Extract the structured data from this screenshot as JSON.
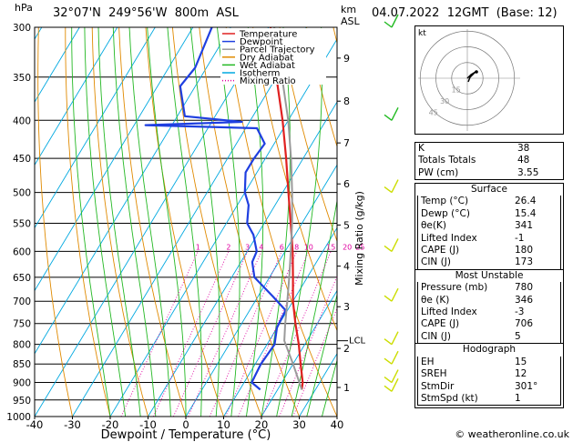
{
  "header": {
    "hpa_label": "hPa",
    "location": "32°07'N  249°56'W  800m  ASL",
    "km_label": "km",
    "asl_label": "ASL",
    "datetime": "04.07.2022  12GMT  (Base: 12)"
  },
  "footer": {
    "copyright": "© weatheronline.co.uk"
  },
  "chart_data": {
    "type": "line",
    "subtype": "skew-T log-P diagram",
    "xlabel": "Dewpoint / Temperature (°C)",
    "x_ticks": [
      -40,
      -30,
      -20,
      -10,
      0,
      10,
      20,
      30,
      40
    ],
    "xlim": [
      -40,
      40
    ],
    "ylabel": "hPa",
    "y_ticks": [
      300,
      350,
      400,
      450,
      500,
      550,
      600,
      650,
      700,
      750,
      800,
      850,
      900,
      950,
      1000
    ],
    "ylim": [
      1000,
      300
    ],
    "y_scale": "log",
    "km_ticks": [
      {
        "label": "1",
        "p": 914
      },
      {
        "label": "2",
        "p": 810
      },
      {
        "label": "3",
        "p": 712
      },
      {
        "label": "4",
        "p": 628
      },
      {
        "label": "5",
        "p": 553
      },
      {
        "label": "6",
        "p": 487
      },
      {
        "label": "7",
        "p": 429
      },
      {
        "label": "8",
        "p": 377
      },
      {
        "label": "9",
        "p": 330
      }
    ],
    "lcl": {
      "label": "LCL",
      "p": 791
    },
    "mixing_ratio_axis_label": "Mixing Ratio (g/kg)",
    "mixing_ratio_labels": [
      "1",
      "2",
      "3",
      "4",
      "6",
      "8",
      "10",
      "15",
      "20",
      "25"
    ],
    "legend": {
      "placement": "top-left",
      "entries": [
        {
          "name": "Temperature",
          "color": "#e02020"
        },
        {
          "name": "Dewpoint",
          "color": "#1f3fe0"
        },
        {
          "name": "Parcel Trajectory",
          "color": "#9a9a9a"
        },
        {
          "name": "Dry Adiabat",
          "color": "#e08a00"
        },
        {
          "name": "Wet Adiabat",
          "color": "#23b823"
        },
        {
          "name": "Isotherm",
          "color": "#00a8e0"
        },
        {
          "name": "Mixing Ratio",
          "color": "#e000a0"
        }
      ]
    },
    "series": [
      {
        "name": "Temperature",
        "color": "#e02020",
        "points": [
          [
            920,
            26.4
          ],
          [
            900,
            25.5
          ],
          [
            850,
            22.0
          ],
          [
            800,
            18.4
          ],
          [
            750,
            14.2
          ],
          [
            700,
            10.0
          ],
          [
            650,
            6.2
          ],
          [
            600,
            2.0
          ],
          [
            550,
            -3.0
          ],
          [
            500,
            -8.5
          ],
          [
            450,
            -14.5
          ],
          [
            400,
            -21.5
          ],
          [
            350,
            -30.0
          ],
          [
            300,
            -39.5
          ]
        ]
      },
      {
        "name": "Dewpoint",
        "color": "#1f3fe0",
        "points": [
          [
            920,
            15.4
          ],
          [
            900,
            12.0
          ],
          [
            850,
            11.5
          ],
          [
            800,
            12.0
          ],
          [
            760,
            10.0
          ],
          [
            720,
            9.5
          ],
          [
            690,
            4.0
          ],
          [
            650,
            -4.0
          ],
          [
            620,
            -7.0
          ],
          [
            600,
            -7.5
          ],
          [
            570,
            -11.0
          ],
          [
            550,
            -14.5
          ],
          [
            520,
            -17.0
          ],
          [
            500,
            -20.0
          ],
          [
            470,
            -23.0
          ],
          [
            450,
            -23.0
          ],
          [
            430,
            -22.5
          ],
          [
            410,
            -27.0
          ],
          [
            406,
            -57.0
          ],
          [
            402,
            -32.0
          ],
          [
            395,
            -48.0
          ],
          [
            360,
            -54.0
          ],
          [
            340,
            -53.0
          ],
          [
            300,
            -55.0
          ]
        ]
      },
      {
        "name": "Parcel Trajectory",
        "color": "#9a9a9a",
        "points": [
          [
            920,
            26.4
          ],
          [
            850,
            20.0
          ],
          [
            791,
            14.0
          ],
          [
            750,
            11.5
          ],
          [
            700,
            8.5
          ],
          [
            650,
            5.2
          ],
          [
            600,
            1.5
          ],
          [
            550,
            -2.6
          ],
          [
            500,
            -7.5
          ],
          [
            450,
            -13.2
          ],
          [
            400,
            -20.0
          ],
          [
            350,
            -28.5
          ],
          [
            300,
            -38.5
          ]
        ]
      }
    ],
    "hodograph": {
      "label": "kt",
      "ring_labels": [
        "45",
        "30",
        "15"
      ],
      "ring_speeds_kt": [
        15,
        30,
        45
      ]
    },
    "wind_barbs": [
      {
        "p": 300,
        "color": "#22bb22"
      },
      {
        "p": 400,
        "color": "#22bb22"
      },
      {
        "p": 500,
        "color": "#ccdd00"
      },
      {
        "p": 600,
        "color": "#ccdd00"
      },
      {
        "p": 700,
        "color": "#ccdd00"
      },
      {
        "p": 800,
        "color": "#ccdd00"
      },
      {
        "p": 850,
        "color": "#ccdd00"
      },
      {
        "p": 900,
        "color": "#ccdd00"
      },
      {
        "p": 925,
        "color": "#ccdd00"
      }
    ]
  },
  "indices": {
    "k_label": "K",
    "k_value": "38",
    "tt_label": "Totals Totals",
    "tt_value": "48",
    "pw_label": "PW (cm)",
    "pw_value": "3.55"
  },
  "surface": {
    "title": "Surface",
    "rows": [
      {
        "label": "Temp (°C)",
        "value": "26.4"
      },
      {
        "label": "Dewp (°C)",
        "value": "15.4"
      },
      {
        "label": "θe(K)",
        "value": "341"
      },
      {
        "label": "Lifted Index",
        "value": "-1"
      },
      {
        "label": "CAPE (J)",
        "value": "180"
      },
      {
        "label": "CIN (J)",
        "value": "173"
      }
    ]
  },
  "most_unstable": {
    "title": "Most Unstable",
    "rows": [
      {
        "label": "Pressure (mb)",
        "value": "780"
      },
      {
        "label": "θe (K)",
        "value": "346"
      },
      {
        "label": "Lifted Index",
        "value": "-3"
      },
      {
        "label": "CAPE (J)",
        "value": "706"
      },
      {
        "label": "CIN (J)",
        "value": "5"
      }
    ]
  },
  "hodograph_table": {
    "title": "Hodograph",
    "rows": [
      {
        "label": "EH",
        "value": "15"
      },
      {
        "label": "SREH",
        "value": "12"
      },
      {
        "label": "StmDir",
        "value": "301°"
      },
      {
        "label": "StmSpd (kt)",
        "value": "1"
      }
    ]
  }
}
